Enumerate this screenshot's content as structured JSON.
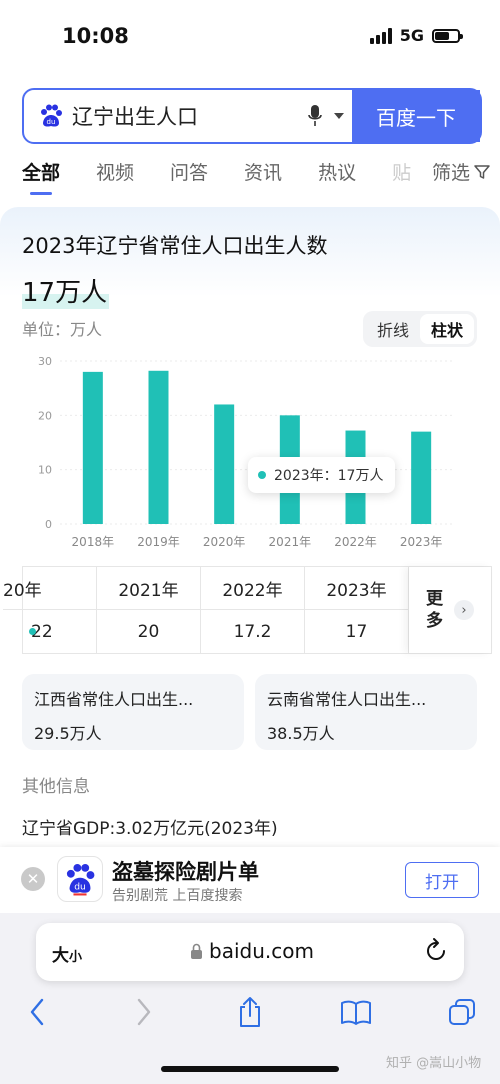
{
  "status": {
    "time": "10:08",
    "network": "5G"
  },
  "search": {
    "query": "辽宁出生人口",
    "button_label": "百度一下"
  },
  "tabs": [
    {
      "label": "全部"
    },
    {
      "label": "视频"
    },
    {
      "label": "问答"
    },
    {
      "label": "资讯"
    },
    {
      "label": "热议"
    },
    {
      "label": "贴"
    }
  ],
  "filter_label": "筛选",
  "card": {
    "title": "2023年辽宁省常住人口出生人数",
    "value": "17万人",
    "unit_label": "单位：万人",
    "toggle": {
      "line": "折线",
      "bar": "柱状"
    },
    "tooltip": "2023年：17万人"
  },
  "chart_data": {
    "type": "bar",
    "categories": [
      "2018年",
      "2019年",
      "2020年",
      "2021年",
      "2022年",
      "2023年"
    ],
    "values": [
      28,
      28.2,
      22,
      20,
      17.2,
      17
    ],
    "ylim": [
      0,
      30
    ],
    "yticks": [
      0,
      10,
      20,
      30
    ],
    "color": "#20c0b6",
    "grid": true
  },
  "table": {
    "headers": [
      "20年",
      "2021年",
      "2022年",
      "2023年"
    ],
    "values": [
      "22",
      "20",
      "17.2",
      "17"
    ],
    "more_label": "更多"
  },
  "related": [
    {
      "title": "江西省常住人口出生...",
      "value": "29.5万人"
    },
    {
      "title": "云南省常住人口出生...",
      "value": "38.5万人"
    }
  ],
  "other_info_label": "其他信息",
  "gdp_line": "辽宁省GDP:3.02万亿元(2023年)",
  "banner": {
    "title": "盗墓探险剧片单",
    "subtitle": "告别剧荒 上百度搜索",
    "open_label": "打开"
  },
  "browser": {
    "aa_big": "大",
    "aa_small": "小",
    "url": "baidu.com"
  },
  "watermark": "知乎 @嵩山小物",
  "colors": {
    "accent": "#4e6ef2",
    "bar": "#20c0b6"
  }
}
